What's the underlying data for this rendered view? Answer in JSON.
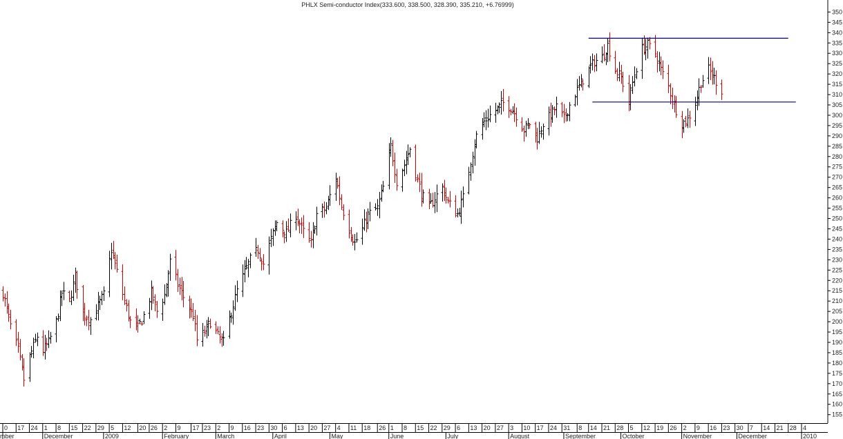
{
  "chart_data": {
    "type": "bar",
    "style": "ohlc",
    "title": "PHLX Semi-conductor Index",
    "quote": "(333.600, 338.500, 328.390, 335.210, +6.76999)",
    "y_axis": {
      "position": "right",
      "ylim": [
        150,
        353
      ],
      "ticks": [
        155,
        160,
        165,
        170,
        175,
        180,
        185,
        190,
        195,
        200,
        205,
        210,
        215,
        220,
        225,
        230,
        235,
        240,
        245,
        250,
        255,
        260,
        265,
        270,
        275,
        280,
        285,
        290,
        295,
        300,
        305,
        310,
        315,
        320,
        325,
        330,
        335,
        340,
        345,
        350
      ]
    },
    "x_axis": {
      "day_labels": [
        {
          "day": "0",
          "date": "2008-11-10"
        },
        {
          "day": "17",
          "date": "2008-11-17"
        },
        {
          "day": "24",
          "date": "2008-11-24"
        },
        {
          "day": "1",
          "date": "2008-12-01"
        },
        {
          "day": "8",
          "date": "2008-12-08"
        },
        {
          "day": "15",
          "date": "2008-12-15"
        },
        {
          "day": "22",
          "date": "2008-12-22"
        },
        {
          "day": "29",
          "date": "2008-12-29"
        },
        {
          "day": "5",
          "date": "2009-01-05"
        },
        {
          "day": "12",
          "date": "2009-01-12"
        },
        {
          "day": "20",
          "date": "2009-01-20"
        },
        {
          "day": "26",
          "date": "2009-01-26"
        },
        {
          "day": "2",
          "date": "2009-02-02"
        },
        {
          "day": "9",
          "date": "2009-02-09"
        },
        {
          "day": "17",
          "date": "2009-02-17"
        },
        {
          "day": "23",
          "date": "2009-02-23"
        },
        {
          "day": "2",
          "date": "2009-03-02"
        },
        {
          "day": "9",
          "date": "2009-03-09"
        },
        {
          "day": "16",
          "date": "2009-03-16"
        },
        {
          "day": "23",
          "date": "2009-03-23"
        },
        {
          "day": "30",
          "date": "2009-03-30"
        },
        {
          "day": "6",
          "date": "2009-04-06"
        },
        {
          "day": "13",
          "date": "2009-04-13"
        },
        {
          "day": "20",
          "date": "2009-04-20"
        },
        {
          "day": "27",
          "date": "2009-04-27"
        },
        {
          "day": "4",
          "date": "2009-05-04"
        },
        {
          "day": "11",
          "date": "2009-05-11"
        },
        {
          "day": "18",
          "date": "2009-05-18"
        },
        {
          "day": "26",
          "date": "2009-05-26"
        },
        {
          "day": "1",
          "date": "2009-06-01"
        },
        {
          "day": "8",
          "date": "2009-06-08"
        },
        {
          "day": "15",
          "date": "2009-06-15"
        },
        {
          "day": "22",
          "date": "2009-06-22"
        },
        {
          "day": "29",
          "date": "2009-06-29"
        },
        {
          "day": "6",
          "date": "2009-07-06"
        },
        {
          "day": "13",
          "date": "2009-07-13"
        },
        {
          "day": "20",
          "date": "2009-07-20"
        },
        {
          "day": "27",
          "date": "2009-07-27"
        },
        {
          "day": "3",
          "date": "2009-08-03"
        },
        {
          "day": "10",
          "date": "2009-08-10"
        },
        {
          "day": "17",
          "date": "2009-08-17"
        },
        {
          "day": "24",
          "date": "2009-08-24"
        },
        {
          "day": "31",
          "date": "2009-08-31"
        },
        {
          "day": "8",
          "date": "2009-09-08"
        },
        {
          "day": "14",
          "date": "2009-09-14"
        },
        {
          "day": "21",
          "date": "2009-09-21"
        },
        {
          "day": "28",
          "date": "2009-09-28"
        },
        {
          "day": "5",
          "date": "2009-10-05"
        },
        {
          "day": "12",
          "date": "2009-10-12"
        },
        {
          "day": "19",
          "date": "2009-10-19"
        },
        {
          "day": "26",
          "date": "2009-10-26"
        },
        {
          "day": "2",
          "date": "2009-11-02"
        },
        {
          "day": "9",
          "date": "2009-11-09"
        },
        {
          "day": "16",
          "date": "2009-11-16"
        },
        {
          "day": "23",
          "date": "2009-11-23"
        },
        {
          "day": "30",
          "date": "2009-11-30"
        },
        {
          "day": "7",
          "date": "2009-12-07"
        },
        {
          "day": "14",
          "date": "2009-12-14"
        },
        {
          "day": "21",
          "date": "2009-12-21"
        },
        {
          "day": "28",
          "date": "2009-12-28"
        },
        {
          "day": "4",
          "date": "2010-01-04"
        }
      ],
      "month_labels": [
        {
          "label": "mber",
          "date": "2008-11-10"
        },
        {
          "label": "December",
          "date": "2008-12-01"
        },
        {
          "label": "2009",
          "date": "2009-01-02"
        },
        {
          "label": "February",
          "date": "2009-02-02"
        },
        {
          "label": "March",
          "date": "2009-03-02"
        },
        {
          "label": "April",
          "date": "2009-04-01"
        },
        {
          "label": "May",
          "date": "2009-05-01"
        },
        {
          "label": "June",
          "date": "2009-06-01"
        },
        {
          "label": "July",
          "date": "2009-07-01"
        },
        {
          "label": "August",
          "date": "2009-08-03"
        },
        {
          "label": "September",
          "date": "2009-09-01"
        },
        {
          "label": "October",
          "date": "2009-10-01"
        },
        {
          "label": "November",
          "date": "2009-11-02"
        },
        {
          "label": "December",
          "date": "2009-12-01"
        },
        {
          "label": "2010",
          "date": "2010-01-04"
        }
      ]
    },
    "bar_count": 271,
    "closes": [
      {
        "date": "2008-11-10",
        "close": 214
      },
      {
        "date": "2008-11-14",
        "close": 198
      },
      {
        "date": "2008-11-18",
        "close": 186
      },
      {
        "date": "2008-11-21",
        "close": 172
      },
      {
        "date": "2008-11-24",
        "close": 183
      },
      {
        "date": "2008-11-28",
        "close": 193
      },
      {
        "date": "2008-12-01",
        "close": 186
      },
      {
        "date": "2008-12-04",
        "close": 190
      },
      {
        "date": "2008-12-08",
        "close": 200
      },
      {
        "date": "2008-12-11",
        "close": 214
      },
      {
        "date": "2008-12-15",
        "close": 210
      },
      {
        "date": "2008-12-18",
        "close": 222
      },
      {
        "date": "2008-12-22",
        "close": 204
      },
      {
        "date": "2008-12-26",
        "close": 201
      },
      {
        "date": "2008-12-29",
        "close": 206
      },
      {
        "date": "2009-01-02",
        "close": 213
      },
      {
        "date": "2009-01-06",
        "close": 235
      },
      {
        "date": "2009-01-09",
        "close": 224
      },
      {
        "date": "2009-01-13",
        "close": 210
      },
      {
        "date": "2009-01-16",
        "close": 200
      },
      {
        "date": "2009-01-20",
        "close": 197
      },
      {
        "date": "2009-01-23",
        "close": 203
      },
      {
        "date": "2009-01-27",
        "close": 214
      },
      {
        "date": "2009-01-30",
        "close": 205
      },
      {
        "date": "2009-02-03",
        "close": 213
      },
      {
        "date": "2009-02-06",
        "close": 229
      },
      {
        "date": "2009-02-10",
        "close": 218
      },
      {
        "date": "2009-02-13",
        "close": 212
      },
      {
        "date": "2009-02-18",
        "close": 203
      },
      {
        "date": "2009-02-20",
        "close": 191
      },
      {
        "date": "2009-02-24",
        "close": 195
      },
      {
        "date": "2009-02-27",
        "close": 200
      },
      {
        "date": "2009-03-03",
        "close": 193
      },
      {
        "date": "2009-03-06",
        "close": 190
      },
      {
        "date": "2009-03-10",
        "close": 205
      },
      {
        "date": "2009-03-13",
        "close": 215
      },
      {
        "date": "2009-03-17",
        "close": 224
      },
      {
        "date": "2009-03-20",
        "close": 230
      },
      {
        "date": "2009-03-24",
        "close": 235
      },
      {
        "date": "2009-03-27",
        "close": 228
      },
      {
        "date": "2009-03-31",
        "close": 240
      },
      {
        "date": "2009-04-03",
        "close": 248
      },
      {
        "date": "2009-04-08",
        "close": 243
      },
      {
        "date": "2009-04-13",
        "close": 252
      },
      {
        "date": "2009-04-16",
        "close": 245
      },
      {
        "date": "2009-04-21",
        "close": 238
      },
      {
        "date": "2009-04-24",
        "close": 252
      },
      {
        "date": "2009-04-29",
        "close": 255
      },
      {
        "date": "2009-05-04",
        "close": 270
      },
      {
        "date": "2009-05-07",
        "close": 256
      },
      {
        "date": "2009-05-11",
        "close": 245
      },
      {
        "date": "2009-05-14",
        "close": 238
      },
      {
        "date": "2009-05-18",
        "close": 245
      },
      {
        "date": "2009-05-21",
        "close": 252
      },
      {
        "date": "2009-05-26",
        "close": 255
      },
      {
        "date": "2009-05-29",
        "close": 265
      },
      {
        "date": "2009-06-02",
        "close": 285
      },
      {
        "date": "2009-06-05",
        "close": 268
      },
      {
        "date": "2009-06-09",
        "close": 276
      },
      {
        "date": "2009-06-12",
        "close": 284
      },
      {
        "date": "2009-06-15",
        "close": 272
      },
      {
        "date": "2009-06-18",
        "close": 262
      },
      {
        "date": "2009-06-22",
        "close": 255
      },
      {
        "date": "2009-06-25",
        "close": 260
      },
      {
        "date": "2009-06-29",
        "close": 265
      },
      {
        "date": "2009-07-02",
        "close": 258
      },
      {
        "date": "2009-07-07",
        "close": 252
      },
      {
        "date": "2009-07-10",
        "close": 260
      },
      {
        "date": "2009-07-14",
        "close": 278
      },
      {
        "date": "2009-07-17",
        "close": 290
      },
      {
        "date": "2009-07-21",
        "close": 297
      },
      {
        "date": "2009-07-24",
        "close": 300
      },
      {
        "date": "2009-07-28",
        "close": 303
      },
      {
        "date": "2009-07-31",
        "close": 306
      },
      {
        "date": "2009-08-04",
        "close": 304
      },
      {
        "date": "2009-08-07",
        "close": 300
      },
      {
        "date": "2009-08-11",
        "close": 293
      },
      {
        "date": "2009-08-14",
        "close": 296
      },
      {
        "date": "2009-08-18",
        "close": 289
      },
      {
        "date": "2009-08-21",
        "close": 296
      },
      {
        "date": "2009-08-25",
        "close": 300
      },
      {
        "date": "2009-08-28",
        "close": 304
      },
      {
        "date": "2009-09-01",
        "close": 298
      },
      {
        "date": "2009-09-04",
        "close": 305
      },
      {
        "date": "2009-09-09",
        "close": 314
      },
      {
        "date": "2009-09-14",
        "close": 322
      },
      {
        "date": "2009-09-17",
        "close": 326
      },
      {
        "date": "2009-09-21",
        "close": 328
      },
      {
        "date": "2009-09-24",
        "close": 334
      },
      {
        "date": "2009-09-28",
        "close": 322
      },
      {
        "date": "2009-10-01",
        "close": 318
      },
      {
        "date": "2009-10-05",
        "close": 307
      },
      {
        "date": "2009-10-08",
        "close": 320
      },
      {
        "date": "2009-10-12",
        "close": 332
      },
      {
        "date": "2009-10-15",
        "close": 334
      },
      {
        "date": "2009-10-19",
        "close": 330
      },
      {
        "date": "2009-10-22",
        "close": 322
      },
      {
        "date": "2009-10-26",
        "close": 314
      },
      {
        "date": "2009-10-29",
        "close": 305
      },
      {
        "date": "2009-11-02",
        "close": 296
      },
      {
        "date": "2009-11-05",
        "close": 298
      },
      {
        "date": "2009-11-09",
        "close": 306
      },
      {
        "date": "2009-11-12",
        "close": 316
      },
      {
        "date": "2009-11-16",
        "close": 322
      },
      {
        "date": "2009-11-19",
        "close": 318
      },
      {
        "date": "2009-11-23",
        "close": 312
      },
      {
        "date": "2009-11-26",
        "close": 306
      },
      {
        "date": "2009-11-30",
        "close": 310
      },
      {
        "date": "2009-12-03",
        "close": 325
      },
      {
        "date": "2009-12-07",
        "close": 335
      }
    ],
    "trend_lines": [
      {
        "name": "resistance",
        "color": "#000080",
        "value": 337.3,
        "from": "2009-09-14",
        "to": "2009-12-28"
      },
      {
        "name": "support",
        "color": "#000080",
        "value": 306.4,
        "from": "2009-09-16",
        "to": "2010-01-01"
      }
    ],
    "colors": {
      "up": "#000000",
      "down": "#cc0000",
      "line": "#000080",
      "axis": "#000000",
      "background": "#ffffff"
    },
    "grid": false
  }
}
